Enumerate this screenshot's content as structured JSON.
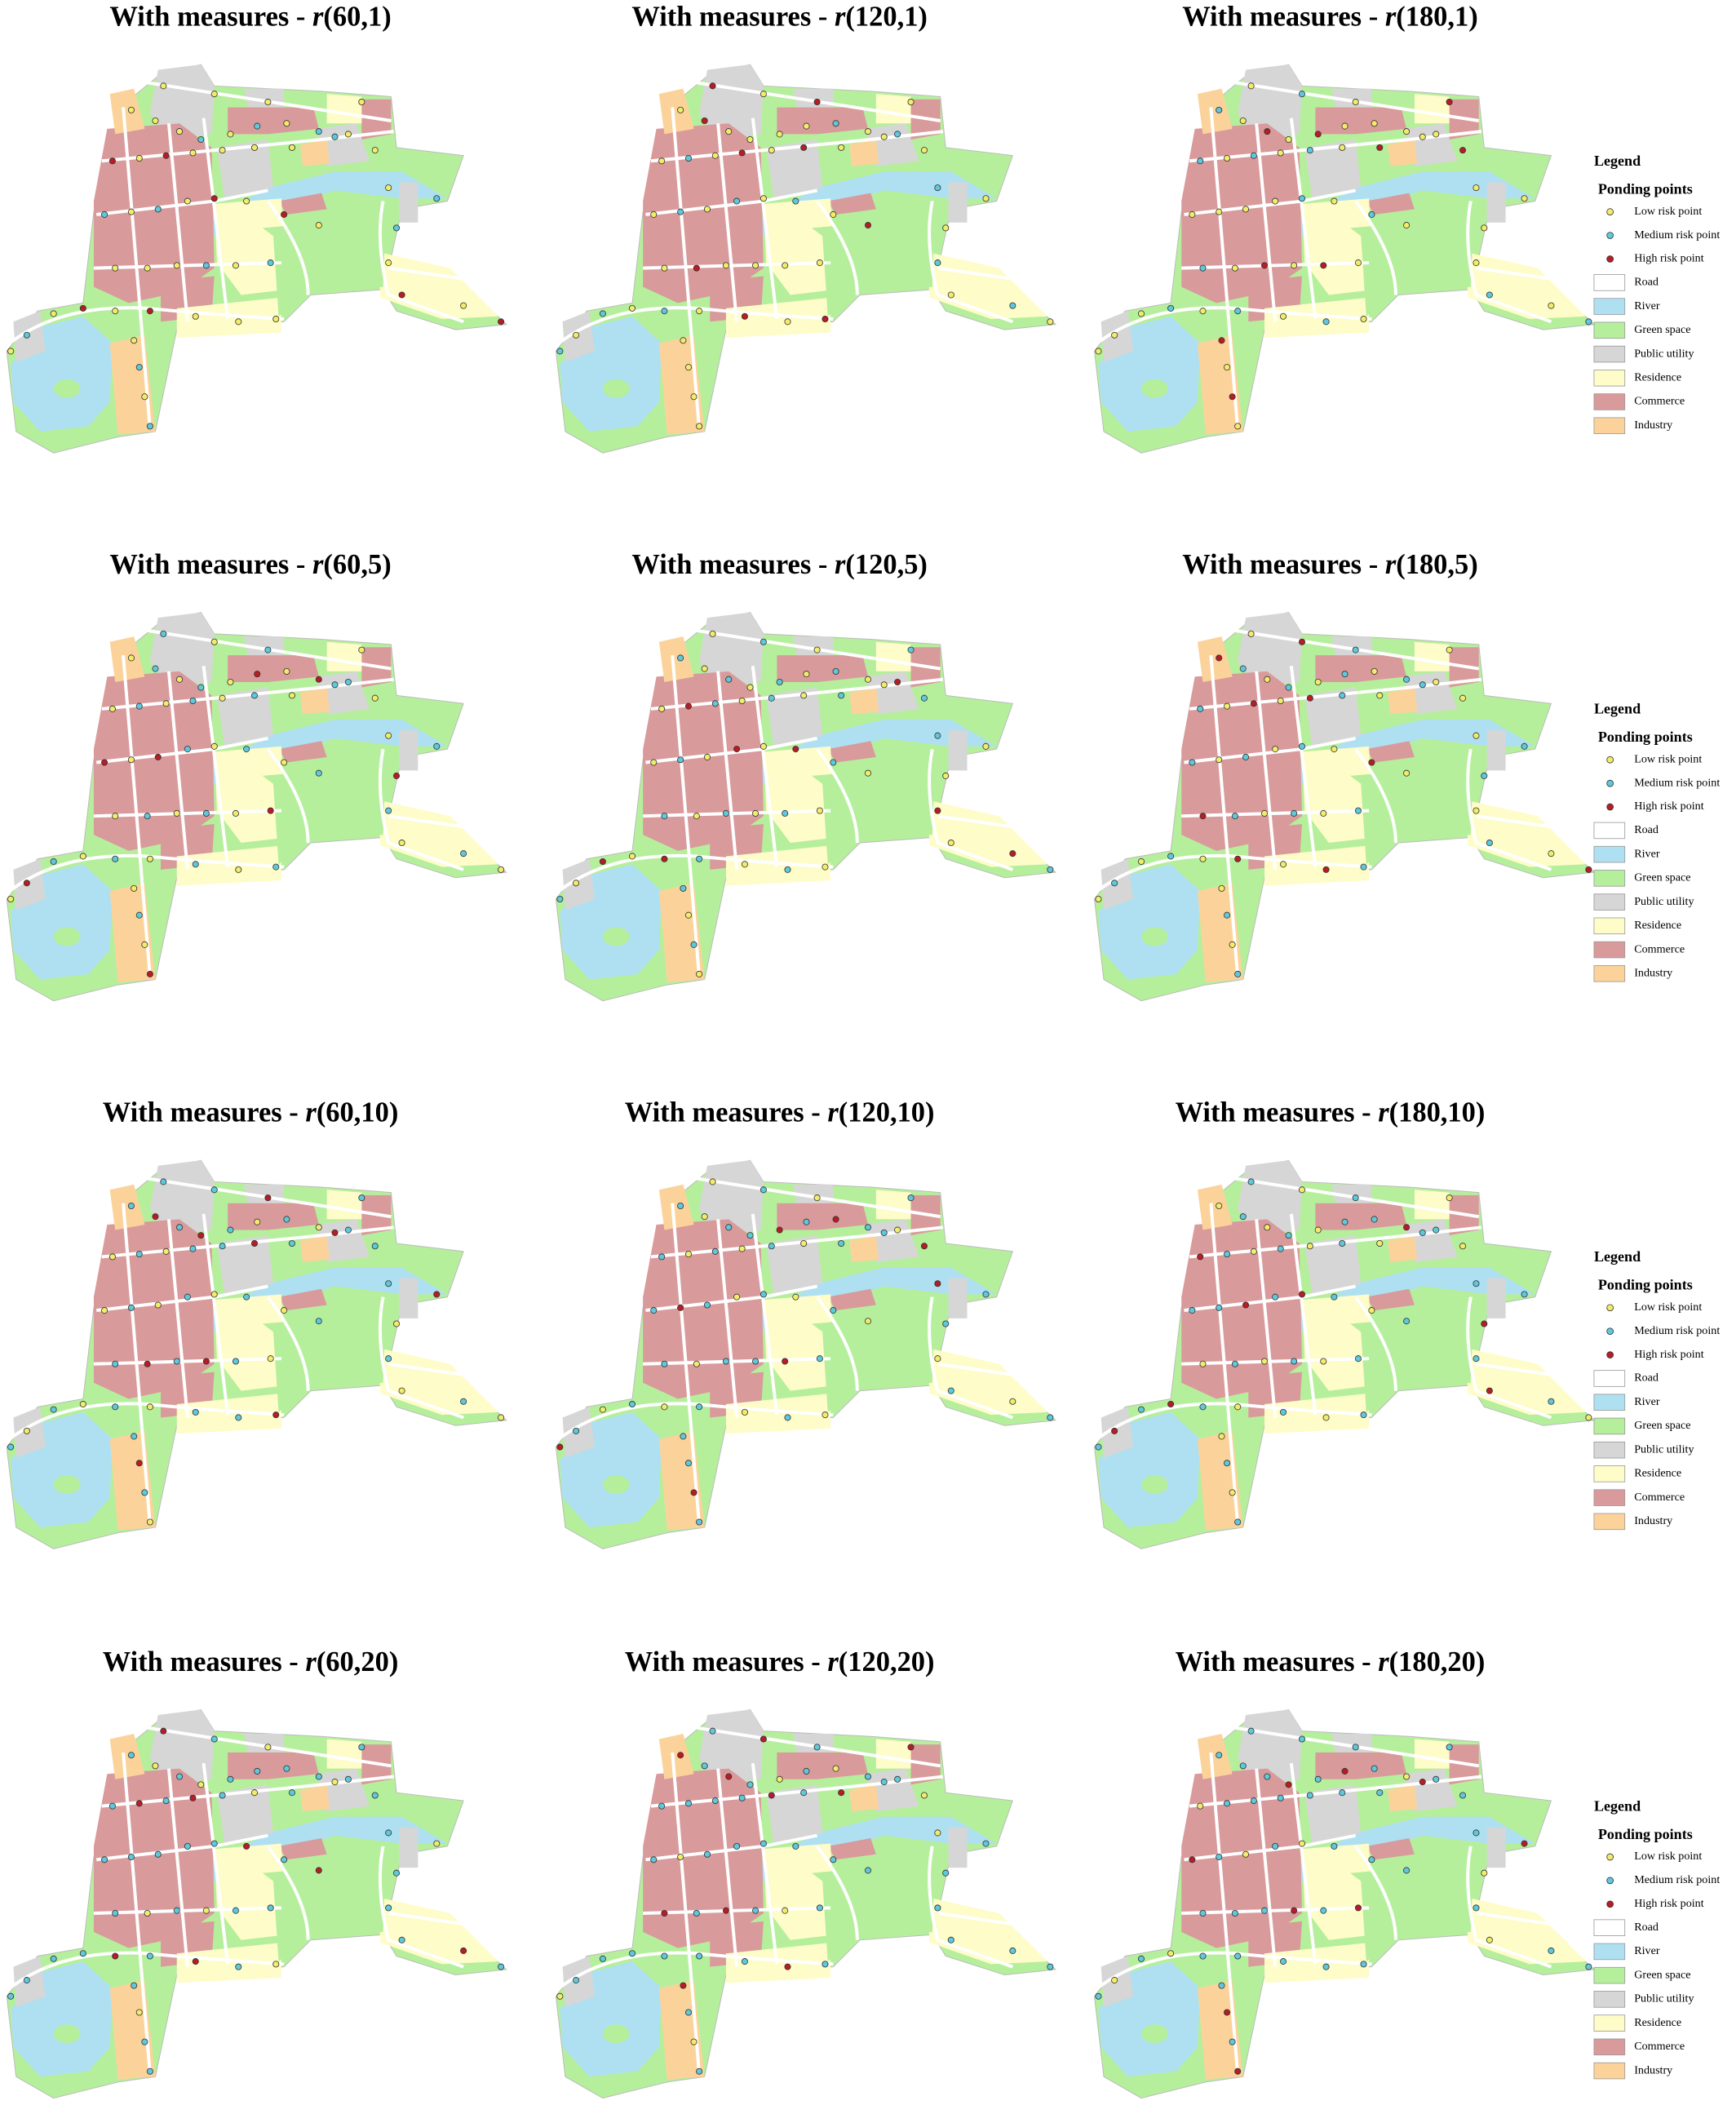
{
  "panels": [
    {
      "title": {
        "prefix": "With measures - ",
        "variable": "r",
        "arguments": "(60,1)"
      }
    },
    {
      "title": {
        "prefix": "With measures - ",
        "variable": "r",
        "arguments": "(120,1)"
      }
    },
    {
      "title": {
        "prefix": "With measures - ",
        "variable": "r",
        "arguments": "(180,1)"
      }
    },
    {
      "title": {
        "prefix": "With measures - ",
        "variable": "r",
        "arguments": "(60,5)"
      }
    },
    {
      "title": {
        "prefix": "With measures - ",
        "variable": "r",
        "arguments": "(120,5)"
      }
    },
    {
      "title": {
        "prefix": "With measures - ",
        "variable": "r",
        "arguments": "(180,5)"
      }
    },
    {
      "title": {
        "prefix": "With measures - ",
        "variable": "r",
        "arguments": "(60,10)"
      }
    },
    {
      "title": {
        "prefix": "With measures - ",
        "variable": "r",
        "arguments": "(120,10)"
      }
    },
    {
      "title": {
        "prefix": "With measures - ",
        "variable": "r",
        "arguments": "(180,10)"
      }
    },
    {
      "title": {
        "prefix": "With measures - ",
        "variable": "r",
        "arguments": "(60,20)"
      }
    },
    {
      "title": {
        "prefix": "With measures - ",
        "variable": "r",
        "arguments": "(120,20)"
      }
    },
    {
      "title": {
        "prefix": "With measures - ",
        "variable": "r",
        "arguments": "(180,20)"
      }
    }
  ],
  "legend": {
    "title": "Legend",
    "points_title": "Ponding points",
    "points": [
      {
        "label": "Low risk point",
        "color": "#f3ec6a"
      },
      {
        "label": "Medium risk point",
        "color": "#5ec8dc"
      },
      {
        "label": "High risk point",
        "color": "#b81c24"
      }
    ],
    "areas": [
      {
        "label": "Road",
        "color": "#ffffff"
      },
      {
        "label": "River",
        "color": "#aee0f2"
      },
      {
        "label": "Green space",
        "color": "#b5ef9c"
      },
      {
        "label": "Public utility",
        "color": "#d6d6d6"
      },
      {
        "label": "Residence",
        "color": "#fefcc8"
      },
      {
        "label": "Commerce",
        "color": "#d99a9c"
      },
      {
        "label": "Industry",
        "color": "#fbd39a"
      }
    ]
  }
}
